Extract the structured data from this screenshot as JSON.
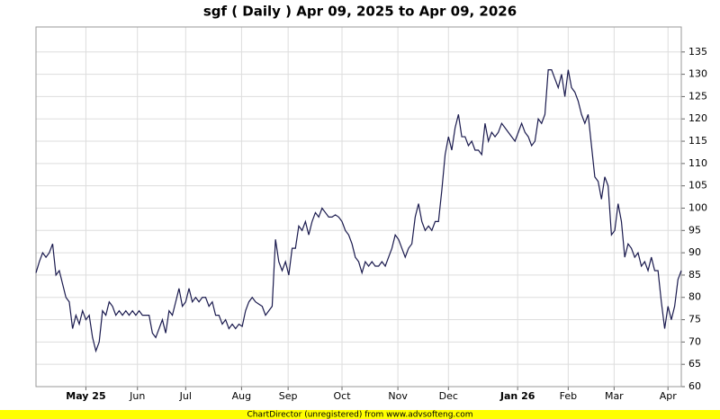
{
  "chart_data": {
    "type": "line",
    "title": "sgf ( Daily ) Apr 09, 2025 to Apr 09, 2026",
    "footer": "ChartDirector (unregistered) from www.advsofteng.com",
    "series": [
      {
        "color": "#1a1a4e",
        "values": [
          85.5,
          88,
          90,
          89,
          90,
          92,
          85,
          86,
          83,
          80,
          79,
          73,
          76,
          74,
          77,
          75,
          76,
          71,
          68,
          70,
          77,
          76,
          79,
          78,
          76,
          77,
          76,
          77,
          76,
          77,
          76,
          77,
          76,
          76,
          76,
          72,
          71,
          73,
          75,
          72,
          77,
          76,
          79,
          82,
          78,
          79,
          82,
          79,
          80,
          79,
          80,
          80,
          78,
          79,
          76,
          76,
          74,
          75,
          73,
          74,
          73,
          74,
          73.5,
          77,
          79,
          80,
          79,
          78.5,
          78,
          76,
          77,
          78,
          93,
          88,
          86,
          88,
          85,
          91,
          91,
          96,
          95,
          97,
          94,
          97,
          99,
          98,
          100,
          99,
          98,
          98,
          98.5,
          98,
          97,
          95,
          94,
          92,
          89,
          88,
          85.5,
          88,
          87,
          88,
          87,
          87,
          88,
          87,
          89,
          91,
          94,
          93,
          91,
          89,
          91,
          92,
          98,
          101,
          97,
          95,
          96,
          95,
          97,
          97,
          104,
          112,
          116,
          113,
          118,
          121,
          116,
          116,
          114,
          115,
          113,
          113,
          112,
          119,
          115,
          117,
          116,
          117,
          119,
          118,
          117,
          116,
          115,
          117,
          119,
          117,
          116,
          114,
          115,
          120,
          119,
          121,
          131,
          131,
          129,
          127,
          130,
          125,
          131,
          127,
          126,
          124,
          121,
          119,
          121,
          114,
          107,
          106,
          102,
          107,
          105,
          94,
          95,
          101,
          97,
          89,
          92,
          91,
          89,
          90,
          87,
          88,
          86,
          89,
          86,
          86,
          79,
          73,
          78,
          75,
          78,
          84,
          86
        ]
      }
    ],
    "xlim": [
      0,
      194
    ],
    "xticks": [
      {
        "value": 15,
        "label": "May 25"
      },
      {
        "value": 30.5,
        "label": "Jun"
      },
      {
        "value": 45,
        "label": "Jul"
      },
      {
        "value": 61.8,
        "label": "Aug"
      },
      {
        "value": 75.8,
        "label": "Sep"
      },
      {
        "value": 92,
        "label": "Oct"
      },
      {
        "value": 108.8,
        "label": "Nov"
      },
      {
        "value": 124,
        "label": "Dec"
      },
      {
        "value": 144.8,
        "label": "Jan 26"
      },
      {
        "value": 160,
        "label": "Feb"
      },
      {
        "value": 173.8,
        "label": "Mar"
      },
      {
        "value": 190,
        "label": "Apr"
      }
    ],
    "ylim": [
      60,
      140.6
    ],
    "yticks": [
      60,
      65,
      70,
      75,
      80,
      85,
      90,
      95,
      100,
      105,
      110,
      115,
      120,
      125,
      130,
      135
    ],
    "grid": true
  }
}
